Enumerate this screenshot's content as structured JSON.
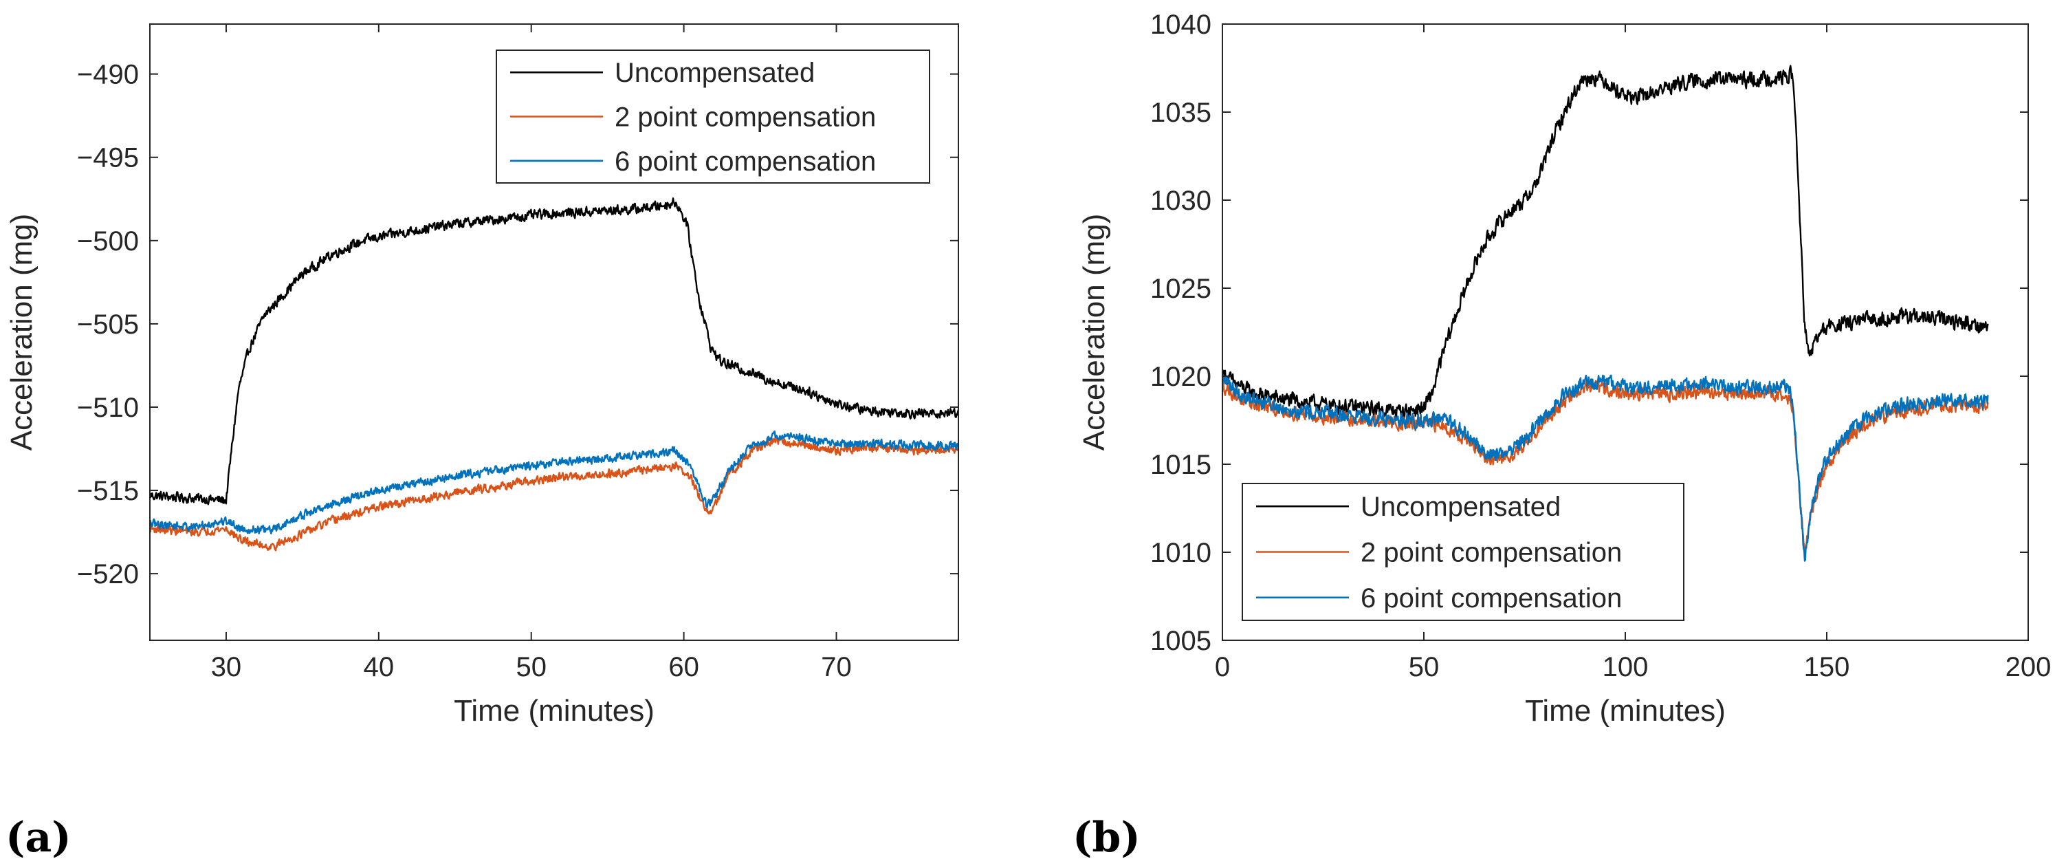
{
  "colors": {
    "uncompensated": "#000000",
    "two_point": "#D95319",
    "six_point": "#0072BD",
    "axis": "#262626"
  },
  "chart_data": [
    {
      "type": "line",
      "panel_label": "(a)",
      "xlabel": "Time (minutes)",
      "ylabel": "Acceleration (mg)",
      "xlim": [
        25,
        78
      ],
      "ylim": [
        -524,
        -487
      ],
      "xticks": [
        30,
        40,
        50,
        60,
        70
      ],
      "yticks": [
        -490,
        -495,
        -500,
        -505,
        -510,
        -515,
        -520
      ],
      "xtick_labels": [
        "30",
        "40",
        "50",
        "60",
        "70"
      ],
      "ytick_labels": [
        "−490",
        "−495",
        "−500",
        "−505",
        "−510",
        "−515",
        "−520"
      ],
      "legend_position": "top-right",
      "noise": [
        0.35,
        0.3,
        0.3
      ],
      "series": [
        {
          "name": "Uncompensated",
          "color_key": "uncompensated",
          "x": [
            25,
            30,
            30.3,
            30.8,
            31.5,
            32.5,
            33.5,
            35,
            37,
            39,
            41,
            43,
            45,
            47,
            49,
            51,
            53,
            55,
            57,
            58.5,
            59.5,
            60.2,
            61,
            61.8,
            62.5,
            64,
            66,
            68,
            70,
            72,
            74,
            76,
            78
          ],
          "y": [
            -515.3,
            -515.6,
            -513,
            -509,
            -506.5,
            -504.5,
            -503.5,
            -502,
            -500.8,
            -500,
            -499.6,
            -499.3,
            -499,
            -498.8,
            -498.6,
            -498.4,
            -498.3,
            -498.2,
            -498.1,
            -497.9,
            -497.7,
            -499,
            -503.5,
            -506.5,
            -507.3,
            -507.8,
            -508.5,
            -509,
            -509.8,
            -510.2,
            -510.3,
            -510.4,
            -510.3
          ]
        },
        {
          "name": "2 point compensation",
          "color_key": "two_point",
          "x": [
            25,
            28,
            30,
            31,
            33,
            35,
            37,
            40,
            43,
            46,
            49,
            52,
            55,
            58,
            59.5,
            60.5,
            61.5,
            62,
            63,
            64.5,
            66,
            68,
            70,
            72,
            75,
            78
          ],
          "y": [
            -517.3,
            -517.5,
            -517.3,
            -518,
            -518.4,
            -517.6,
            -516.8,
            -516,
            -515.5,
            -515,
            -514.6,
            -514.2,
            -514,
            -513.7,
            -513.5,
            -514.3,
            -516.4,
            -516,
            -514,
            -512.6,
            -512,
            -512.3,
            -512.6,
            -512.4,
            -512.6,
            -512.6
          ]
        },
        {
          "name": "6 point compensation",
          "color_key": "six_point",
          "x": [
            25,
            28,
            30,
            31,
            33,
            35,
            37,
            40,
            43,
            46,
            49,
            52,
            55,
            58,
            59.5,
            60.5,
            61.5,
            62,
            63,
            64.5,
            66,
            68,
            70,
            72,
            75,
            78
          ],
          "y": [
            -517,
            -517.2,
            -516.8,
            -517.3,
            -517.4,
            -516.5,
            -515.8,
            -515,
            -514.5,
            -514,
            -513.6,
            -513.3,
            -513.1,
            -512.8,
            -512.6,
            -513.7,
            -515.9,
            -515.5,
            -513.7,
            -512.3,
            -511.7,
            -511.9,
            -512.2,
            -512.2,
            -512.3,
            -512.3
          ]
        }
      ]
    },
    {
      "type": "line",
      "panel_label": "(b)",
      "xlabel": "Time (minutes)",
      "ylabel": "Acceleration (mg)",
      "xlim": [
        0,
        200
      ],
      "ylim": [
        1005,
        1040
      ],
      "xticks": [
        0,
        50,
        100,
        150,
        200
      ],
      "yticks": [
        1005,
        1010,
        1015,
        1020,
        1025,
        1030,
        1035,
        1040
      ],
      "xtick_labels": [
        "0",
        "50",
        "100",
        "150",
        "200"
      ],
      "ytick_labels": [
        "1005",
        "1010",
        "1015",
        "1020",
        "1025",
        "1030",
        "1035",
        "1040"
      ],
      "legend_position": "bottom-left",
      "noise": [
        0.5,
        0.45,
        0.5
      ],
      "series": [
        {
          "name": "Uncompensated",
          "color_key": "uncompensated",
          "x": [
            0,
            3,
            8,
            15,
            25,
            35,
            45,
            50,
            52,
            55,
            58,
            62,
            65,
            68,
            72,
            75,
            78,
            82,
            86,
            89,
            92,
            95,
            98,
            102,
            106,
            110,
            115,
            120,
            125,
            130,
            135,
            140,
            141.5,
            142.5,
            143.5,
            144.5,
            145.5,
            147,
            150,
            155,
            160,
            165,
            170,
            175,
            180,
            185,
            190
          ],
          "y": [
            1020.2,
            1019.6,
            1019,
            1018.7,
            1018.4,
            1018.2,
            1018,
            1018.2,
            1019,
            1021.5,
            1023.5,
            1026,
            1027.5,
            1028.5,
            1029.5,
            1030,
            1031,
            1033.5,
            1035.5,
            1036.8,
            1037,
            1036.8,
            1036.2,
            1035.8,
            1036,
            1036.4,
            1036.7,
            1036.8,
            1036.9,
            1036.8,
            1036.9,
            1037,
            1037.2,
            1033.5,
            1028,
            1023,
            1021,
            1022,
            1022.8,
            1023,
            1023.2,
            1023.3,
            1023.4,
            1023.3,
            1023.2,
            1023,
            1022.8
          ]
        },
        {
          "name": "2 point compensation",
          "color_key": "two_point",
          "x": [
            0,
            5,
            15,
            25,
            35,
            45,
            50,
            55,
            60,
            65,
            68,
            72,
            76,
            80,
            85,
            90,
            95,
            100,
            110,
            120,
            130,
            140,
            141.5,
            143,
            144.5,
            146,
            148,
            150,
            154,
            158,
            162,
            166,
            170,
            175,
            180,
            185,
            190
          ],
          "y": [
            1019.5,
            1018.6,
            1018,
            1017.7,
            1017.5,
            1017.3,
            1017.3,
            1017.2,
            1016.5,
            1015.4,
            1015.2,
            1015.6,
            1016.3,
            1017.5,
            1018.6,
            1019.4,
            1019.3,
            1019,
            1019,
            1019.1,
            1019,
            1019,
            1018.3,
            1014,
            1009.9,
            1012,
            1013.8,
            1015,
            1016.2,
            1017,
            1017.5,
            1017.9,
            1018.1,
            1018.3,
            1018.4,
            1018.3,
            1018.3
          ]
        },
        {
          "name": "6 point compensation",
          "color_key": "six_point",
          "x": [
            0,
            5,
            15,
            25,
            35,
            45,
            50,
            55,
            60,
            65,
            68,
            72,
            76,
            80,
            85,
            90,
            95,
            100,
            110,
            120,
            130,
            140,
            141.5,
            143,
            144.5,
            146,
            148,
            150,
            154,
            158,
            162,
            166,
            170,
            175,
            180,
            185,
            190
          ],
          "y": [
            1019.9,
            1018.9,
            1018.2,
            1017.9,
            1017.7,
            1017.5,
            1017.5,
            1017.5,
            1016.8,
            1015.7,
            1015.5,
            1015.9,
            1016.6,
            1017.8,
            1018.9,
            1019.7,
            1019.6,
            1019.4,
            1019.4,
            1019.5,
            1019.4,
            1019.4,
            1018.7,
            1014.3,
            1009.5,
            1012.2,
            1014.1,
            1015.3,
            1016.5,
            1017.3,
            1017.8,
            1018.2,
            1018.4,
            1018.6,
            1018.7,
            1018.6,
            1018.6
          ]
        }
      ]
    }
  ]
}
